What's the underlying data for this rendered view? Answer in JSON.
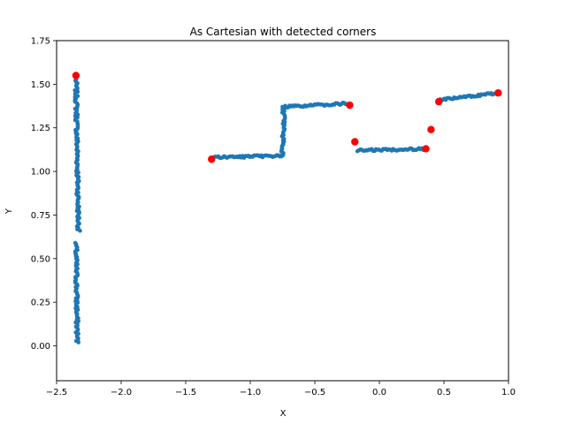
{
  "chart_data": {
    "type": "scatter",
    "title": "As Cartesian with detected corners",
    "xlabel": "X",
    "ylabel": "Y",
    "xlim": [
      -2.5,
      1.0
    ],
    "ylim": [
      -0.2,
      1.75
    ],
    "xticks": [
      -2.5,
      -2.0,
      -1.5,
      -1.0,
      -0.5,
      0.0,
      0.5,
      1.0
    ],
    "xtick_labels": [
      "−2.5",
      "−2.0",
      "−1.5",
      "−1.0",
      "−0.5",
      "0.0",
      "0.5",
      "1.0"
    ],
    "yticks": [
      0.0,
      0.25,
      0.5,
      0.75,
      1.0,
      1.25,
      1.5,
      1.75
    ],
    "ytick_labels": [
      "0.00",
      "0.25",
      "0.50",
      "0.75",
      "1.00",
      "1.25",
      "1.50",
      "1.75"
    ],
    "grid": false,
    "colors": {
      "points": "#1f77b4",
      "corners": "#ff0000"
    },
    "segments": [
      {
        "x": [
          -2.35,
          -2.33
        ],
        "y": [
          1.53,
          0.66
        ]
      },
      {
        "x": [
          -2.35,
          -2.34
        ],
        "y": [
          0.59,
          0.02
        ]
      },
      {
        "x": [
          -1.28,
          -0.75
        ],
        "y": [
          1.08,
          1.09
        ]
      },
      {
        "x": [
          -0.75,
          -0.74
        ],
        "y": [
          1.09,
          1.37
        ]
      },
      {
        "x": [
          -0.74,
          -0.24
        ],
        "y": [
          1.37,
          1.39
        ]
      },
      {
        "x": [
          -0.17,
          0.35
        ],
        "y": [
          1.12,
          1.13
        ]
      },
      {
        "x": [
          0.47,
          0.92
        ],
        "y": [
          1.41,
          1.45
        ]
      }
    ],
    "corners": {
      "x": [
        -2.35,
        -1.3,
        -0.23,
        -0.19,
        0.36,
        0.4,
        0.46,
        0.92
      ],
      "y": [
        1.55,
        1.07,
        1.38,
        1.17,
        1.13,
        1.24,
        1.4,
        1.45
      ]
    }
  }
}
